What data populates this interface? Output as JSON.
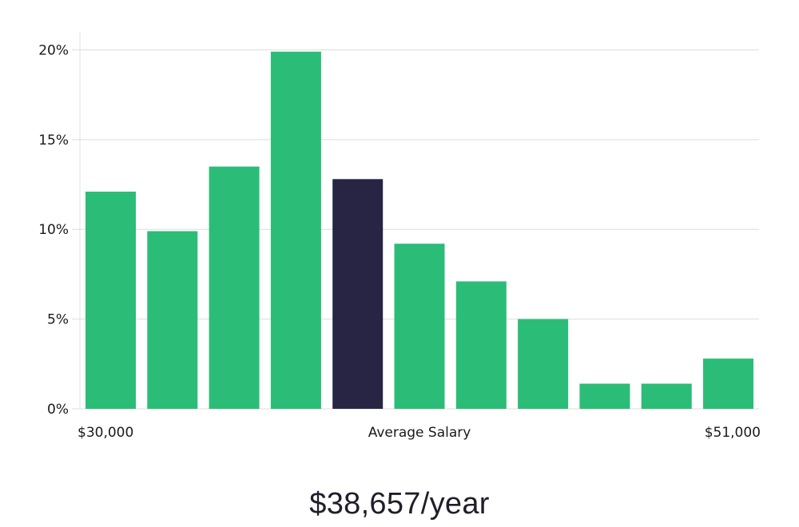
{
  "chart_data": {
    "type": "bar",
    "x_labels": {
      "left": "$30,000",
      "center": "Average Salary",
      "right": "$51,000"
    },
    "y_ticks": [
      "0%",
      "5%",
      "10%",
      "15%",
      "20%"
    ],
    "y_tick_values": [
      0,
      5,
      10,
      15,
      20
    ],
    "ylim": [
      0,
      21
    ],
    "values": [
      12.1,
      9.9,
      13.5,
      19.9,
      12.8,
      9.2,
      7.1,
      5.0,
      1.4,
      1.4,
      2.8
    ],
    "highlight_index": 4,
    "grid": true,
    "colors": {
      "bar": "#2bbd77",
      "highlight": "#272444",
      "grid": "#dddddd",
      "axis": "#e0e0e0"
    }
  },
  "salary": "$38,657/year"
}
